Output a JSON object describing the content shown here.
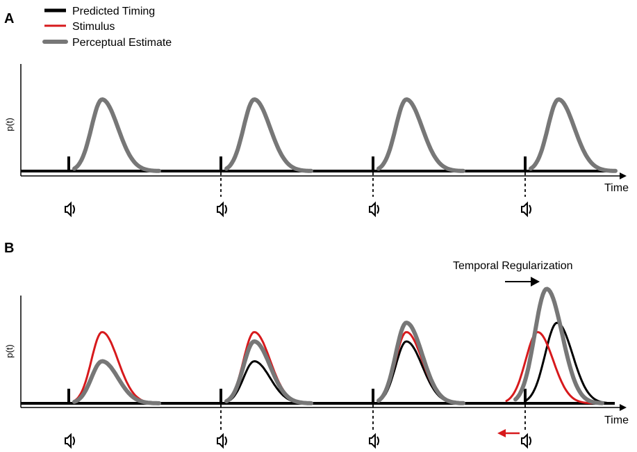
{
  "figure": {
    "colors": {
      "predicted": "#000000",
      "stimulus": "#d7191c",
      "perceptual": "#777777"
    },
    "legend": [
      {
        "label": "Predicted Timing",
        "color_key": "predicted"
      },
      {
        "label": "Stimulus",
        "color_key": "stimulus"
      },
      {
        "label": "Perceptual Estimate",
        "color_key": "perceptual"
      }
    ],
    "panels": [
      {
        "letter": "A",
        "ylabel": "p(t)",
        "xlabel": "Time",
        "events": [
          {
            "speaker_icon": "speaker-icon",
            "curves": {
              "predicted": 1.0,
              "stimulus": 1.0,
              "perceptual": 1.0
            }
          },
          {
            "speaker_icon": "speaker-icon",
            "curves": {
              "predicted": 1.0,
              "stimulus": 1.0,
              "perceptual": 1.0
            }
          },
          {
            "speaker_icon": "speaker-icon",
            "curves": {
              "predicted": 1.0,
              "stimulus": 1.0,
              "perceptual": 1.0
            }
          },
          {
            "speaker_icon": "speaker-icon",
            "curves": {
              "predicted": 1.0,
              "stimulus": 1.0,
              "perceptual": 1.0
            }
          }
        ]
      },
      {
        "letter": "B",
        "ylabel": "p(t)",
        "xlabel": "Time",
        "annotation": "Temporal Regularization",
        "events": [
          {
            "speaker_icon": "speaker-icon",
            "curves": {
              "predicted": 0.0,
              "stimulus": 0.61,
              "perceptual": 0.36
            }
          },
          {
            "speaker_icon": "speaker-icon",
            "curves": {
              "predicted": 0.36,
              "stimulus": 0.61,
              "perceptual": 0.53
            }
          },
          {
            "speaker_icon": "speaker-icon",
            "curves": {
              "predicted": 0.53,
              "stimulus": 0.61,
              "perceptual": 0.69
            }
          },
          {
            "speaker_icon": "speaker-icon",
            "curves": {
              "predicted": 0.69,
              "stimulus": 0.61,
              "perceptual": 0.98,
              "shifted": true
            }
          }
        ]
      }
    ]
  }
}
